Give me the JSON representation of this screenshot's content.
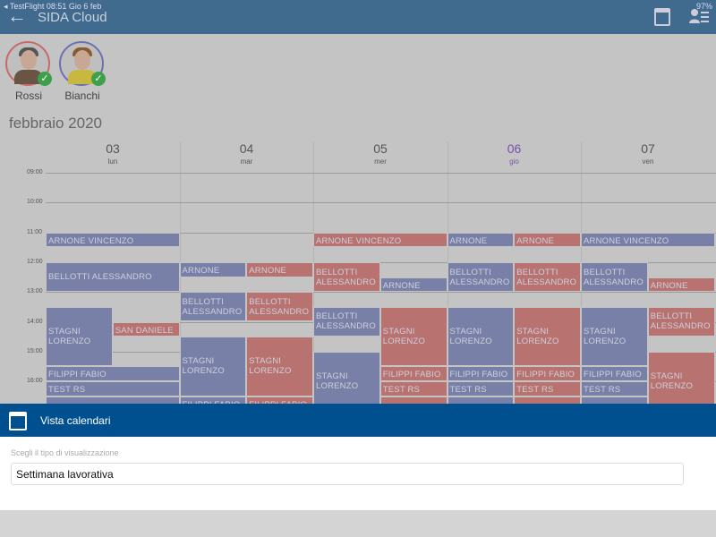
{
  "status_bar": {
    "left": "◂ TestFlight  08:51  Gio 6 feb",
    "right": "97%"
  },
  "header": {
    "title": "SIDA Cloud",
    "back_icon": "arrow-left-icon",
    "icons": [
      "calendar-icon",
      "user-list-icon"
    ]
  },
  "people": [
    {
      "name": "Rossi",
      "ring_color": "#c86a6a",
      "hair": "#555",
      "body": "#6a5444",
      "checked": true
    },
    {
      "name": "Bianchi",
      "ring_color": "#6c72b0",
      "hair": "#8a5a30",
      "body": "#c8b840",
      "checked": true
    }
  ],
  "calendar": {
    "month": "febbraio 2020",
    "days": [
      {
        "num": "03",
        "dow": "lun",
        "today": false
      },
      {
        "num": "04",
        "dow": "mar",
        "today": false
      },
      {
        "num": "05",
        "dow": "mer",
        "today": false
      },
      {
        "num": "06",
        "dow": "gio",
        "today": true
      },
      {
        "num": "07",
        "dow": "ven",
        "today": false
      }
    ],
    "hours": [
      "09:00",
      "10:00",
      "11:00",
      "12:00",
      "13:00",
      "14:00",
      "15:00",
      "16:00"
    ],
    "colors": {
      "blue": "#7880a8",
      "red": "#b87270"
    },
    "events": [
      {
        "day": 0,
        "lane": "full",
        "color": "blue",
        "start": "11:00",
        "end": "11:30",
        "title": "ARNONE VINCENZO"
      },
      {
        "day": 0,
        "lane": "full",
        "color": "blue",
        "start": "12:00",
        "end": "13:00",
        "title": "BELLOTTI ALESSANDRO"
      },
      {
        "day": 0,
        "lane": "left",
        "color": "blue",
        "start": "13:30",
        "end": "15:30",
        "title": "STAGNI LORENZO"
      },
      {
        "day": 0,
        "lane": "right",
        "color": "red",
        "start": "14:00",
        "end": "14:30",
        "title": "SAN DANIELE"
      },
      {
        "day": 0,
        "lane": "full",
        "color": "blue",
        "start": "15:30",
        "end": "16:00",
        "title": "FILIPPI FABIO"
      },
      {
        "day": 0,
        "lane": "full",
        "color": "blue",
        "start": "16:00",
        "end": "16:30",
        "title": "TEST RS"
      },
      {
        "day": 0,
        "lane": "full",
        "color": "blue",
        "start": "16:30",
        "end": "17:00",
        "title": ""
      },
      {
        "day": 1,
        "lane": "left",
        "color": "blue",
        "start": "12:00",
        "end": "12:30",
        "title": "ARNONE VINCENZO"
      },
      {
        "day": 1,
        "lane": "right",
        "color": "red",
        "start": "12:00",
        "end": "12:30",
        "title": "ARNONE VINCENZO"
      },
      {
        "day": 1,
        "lane": "left",
        "color": "blue",
        "start": "13:00",
        "end": "14:00",
        "title": "BELLOTTI ALESSANDRO"
      },
      {
        "day": 1,
        "lane": "right",
        "color": "red",
        "start": "13:00",
        "end": "14:00",
        "title": "BELLOTTI ALESSANDRO"
      },
      {
        "day": 1,
        "lane": "left",
        "color": "blue",
        "start": "14:30",
        "end": "16:30",
        "title": "STAGNI LORENZO"
      },
      {
        "day": 1,
        "lane": "right",
        "color": "red",
        "start": "14:30",
        "end": "16:30",
        "title": "STAGNI LORENZO"
      },
      {
        "day": 1,
        "lane": "left",
        "color": "blue",
        "start": "16:30",
        "end": "17:00",
        "title": "FILIPPI FABIO"
      },
      {
        "day": 1,
        "lane": "right",
        "color": "red",
        "start": "16:30",
        "end": "17:00",
        "title": "FILIPPI FABIO"
      },
      {
        "day": 2,
        "lane": "full",
        "color": "red",
        "start": "11:00",
        "end": "11:30",
        "title": "ARNONE VINCENZO"
      },
      {
        "day": 2,
        "lane": "left",
        "color": "red",
        "start": "12:00",
        "end": "13:00",
        "title": "BELLOTTI ALESSANDRO"
      },
      {
        "day": 2,
        "lane": "right",
        "color": "blue",
        "start": "12:30",
        "end": "13:00",
        "title": "ARNONE VINCENZO"
      },
      {
        "day": 2,
        "lane": "left",
        "color": "blue",
        "start": "13:30",
        "end": "14:30",
        "title": "BELLOTTI ALESSANDRO"
      },
      {
        "day": 2,
        "lane": "right",
        "color": "red",
        "start": "13:30",
        "end": "15:30",
        "title": "STAGNI LORENZO"
      },
      {
        "day": 2,
        "lane": "left",
        "color": "blue",
        "start": "15:00",
        "end": "17:00",
        "title": "STAGNI LORENZO"
      },
      {
        "day": 2,
        "lane": "right",
        "color": "red",
        "start": "15:30",
        "end": "16:00",
        "title": "FILIPPI FABIO"
      },
      {
        "day": 2,
        "lane": "right",
        "color": "red",
        "start": "16:00",
        "end": "16:30",
        "title": "TEST RS"
      },
      {
        "day": 2,
        "lane": "right",
        "color": "red",
        "start": "16:30",
        "end": "17:00",
        "title": ""
      },
      {
        "day": 3,
        "lane": "left",
        "color": "blue",
        "start": "11:00",
        "end": "11:30",
        "title": "ARNONE VINCENZO"
      },
      {
        "day": 3,
        "lane": "right",
        "color": "red",
        "start": "11:00",
        "end": "11:30",
        "title": "ARNONE VINCENZO"
      },
      {
        "day": 3,
        "lane": "left",
        "color": "blue",
        "start": "12:00",
        "end": "13:00",
        "title": "BELLOTTI ALESSANDRO"
      },
      {
        "day": 3,
        "lane": "right",
        "color": "red",
        "start": "12:00",
        "end": "13:00",
        "title": "BELLOTTI ALESSANDRO"
      },
      {
        "day": 3,
        "lane": "left",
        "color": "blue",
        "start": "13:30",
        "end": "15:30",
        "title": "STAGNI LORENZO"
      },
      {
        "day": 3,
        "lane": "right",
        "color": "red",
        "start": "13:30",
        "end": "15:30",
        "title": "STAGNI LORENZO"
      },
      {
        "day": 3,
        "lane": "left",
        "color": "blue",
        "start": "15:30",
        "end": "16:00",
        "title": "FILIPPI FABIO"
      },
      {
        "day": 3,
        "lane": "right",
        "color": "red",
        "start": "15:30",
        "end": "16:00",
        "title": "FILIPPI FABIO"
      },
      {
        "day": 3,
        "lane": "left",
        "color": "blue",
        "start": "16:00",
        "end": "16:30",
        "title": "TEST RS"
      },
      {
        "day": 3,
        "lane": "right",
        "color": "red",
        "start": "16:00",
        "end": "16:30",
        "title": "TEST RS"
      },
      {
        "day": 3,
        "lane": "left",
        "color": "blue",
        "start": "16:30",
        "end": "17:00",
        "title": ""
      },
      {
        "day": 3,
        "lane": "right",
        "color": "red",
        "start": "16:30",
        "end": "17:00",
        "title": ""
      },
      {
        "day": 4,
        "lane": "full",
        "color": "blue",
        "start": "11:00",
        "end": "11:30",
        "title": "ARNONE VINCENZO"
      },
      {
        "day": 4,
        "lane": "left",
        "color": "blue",
        "start": "12:00",
        "end": "13:00",
        "title": "BELLOTTI ALESSANDRO"
      },
      {
        "day": 4,
        "lane": "right",
        "color": "red",
        "start": "12:30",
        "end": "13:00",
        "title": "ARNONE VINCENZO"
      },
      {
        "day": 4,
        "lane": "left",
        "color": "blue",
        "start": "13:30",
        "end": "15:30",
        "title": "STAGNI LORENZO"
      },
      {
        "day": 4,
        "lane": "right",
        "color": "red",
        "start": "13:30",
        "end": "14:30",
        "title": "BELLOTTI ALESSANDRO"
      },
      {
        "day": 4,
        "lane": "right",
        "color": "red",
        "start": "15:00",
        "end": "17:00",
        "title": "STAGNI LORENZO"
      },
      {
        "day": 4,
        "lane": "left",
        "color": "blue",
        "start": "15:30",
        "end": "16:00",
        "title": "FILIPPI FABIO"
      },
      {
        "day": 4,
        "lane": "left",
        "color": "blue",
        "start": "16:00",
        "end": "16:30",
        "title": "TEST RS"
      },
      {
        "day": 4,
        "lane": "left",
        "color": "blue",
        "start": "16:30",
        "end": "17:00",
        "title": ""
      }
    ]
  },
  "sheet": {
    "title": "Vista calendari",
    "icon": "calendar-icon",
    "label": "Scegli il tipo di visualizzazione",
    "value": "Settimana lavorativa"
  }
}
